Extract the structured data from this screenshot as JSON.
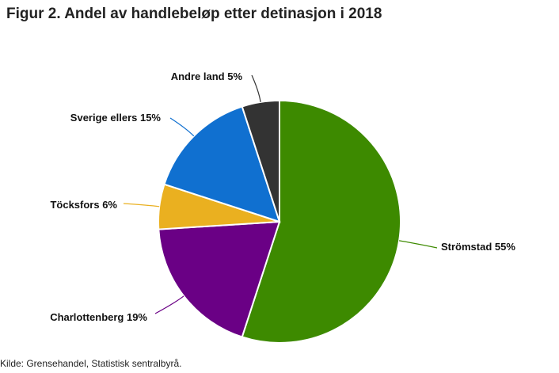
{
  "chart_data": {
    "type": "pie",
    "title": "Figur 2. Andel av handlebeløp etter detinasjon i 2018",
    "source": "Kilde: Grensehandel, Statistisk sentralbyrå.",
    "slices": [
      {
        "name": "Strömstad",
        "value": 55,
        "label": "Strömstad 55%",
        "color": "#3d8a00"
      },
      {
        "name": "Charlottenberg",
        "value": 19,
        "label": "Charlottenberg 19%",
        "color": "#6a0085"
      },
      {
        "name": "Töcksfors",
        "value": 6,
        "label": "Töcksfors 6%",
        "color": "#eab020"
      },
      {
        "name": "Sverige ellers",
        "value": 15,
        "label": "Sverige ellers 15%",
        "color": "#1070d0"
      },
      {
        "name": "Andre land",
        "value": 5,
        "label": "Andre land 5%",
        "color": "#333333"
      }
    ],
    "legend": "none"
  }
}
